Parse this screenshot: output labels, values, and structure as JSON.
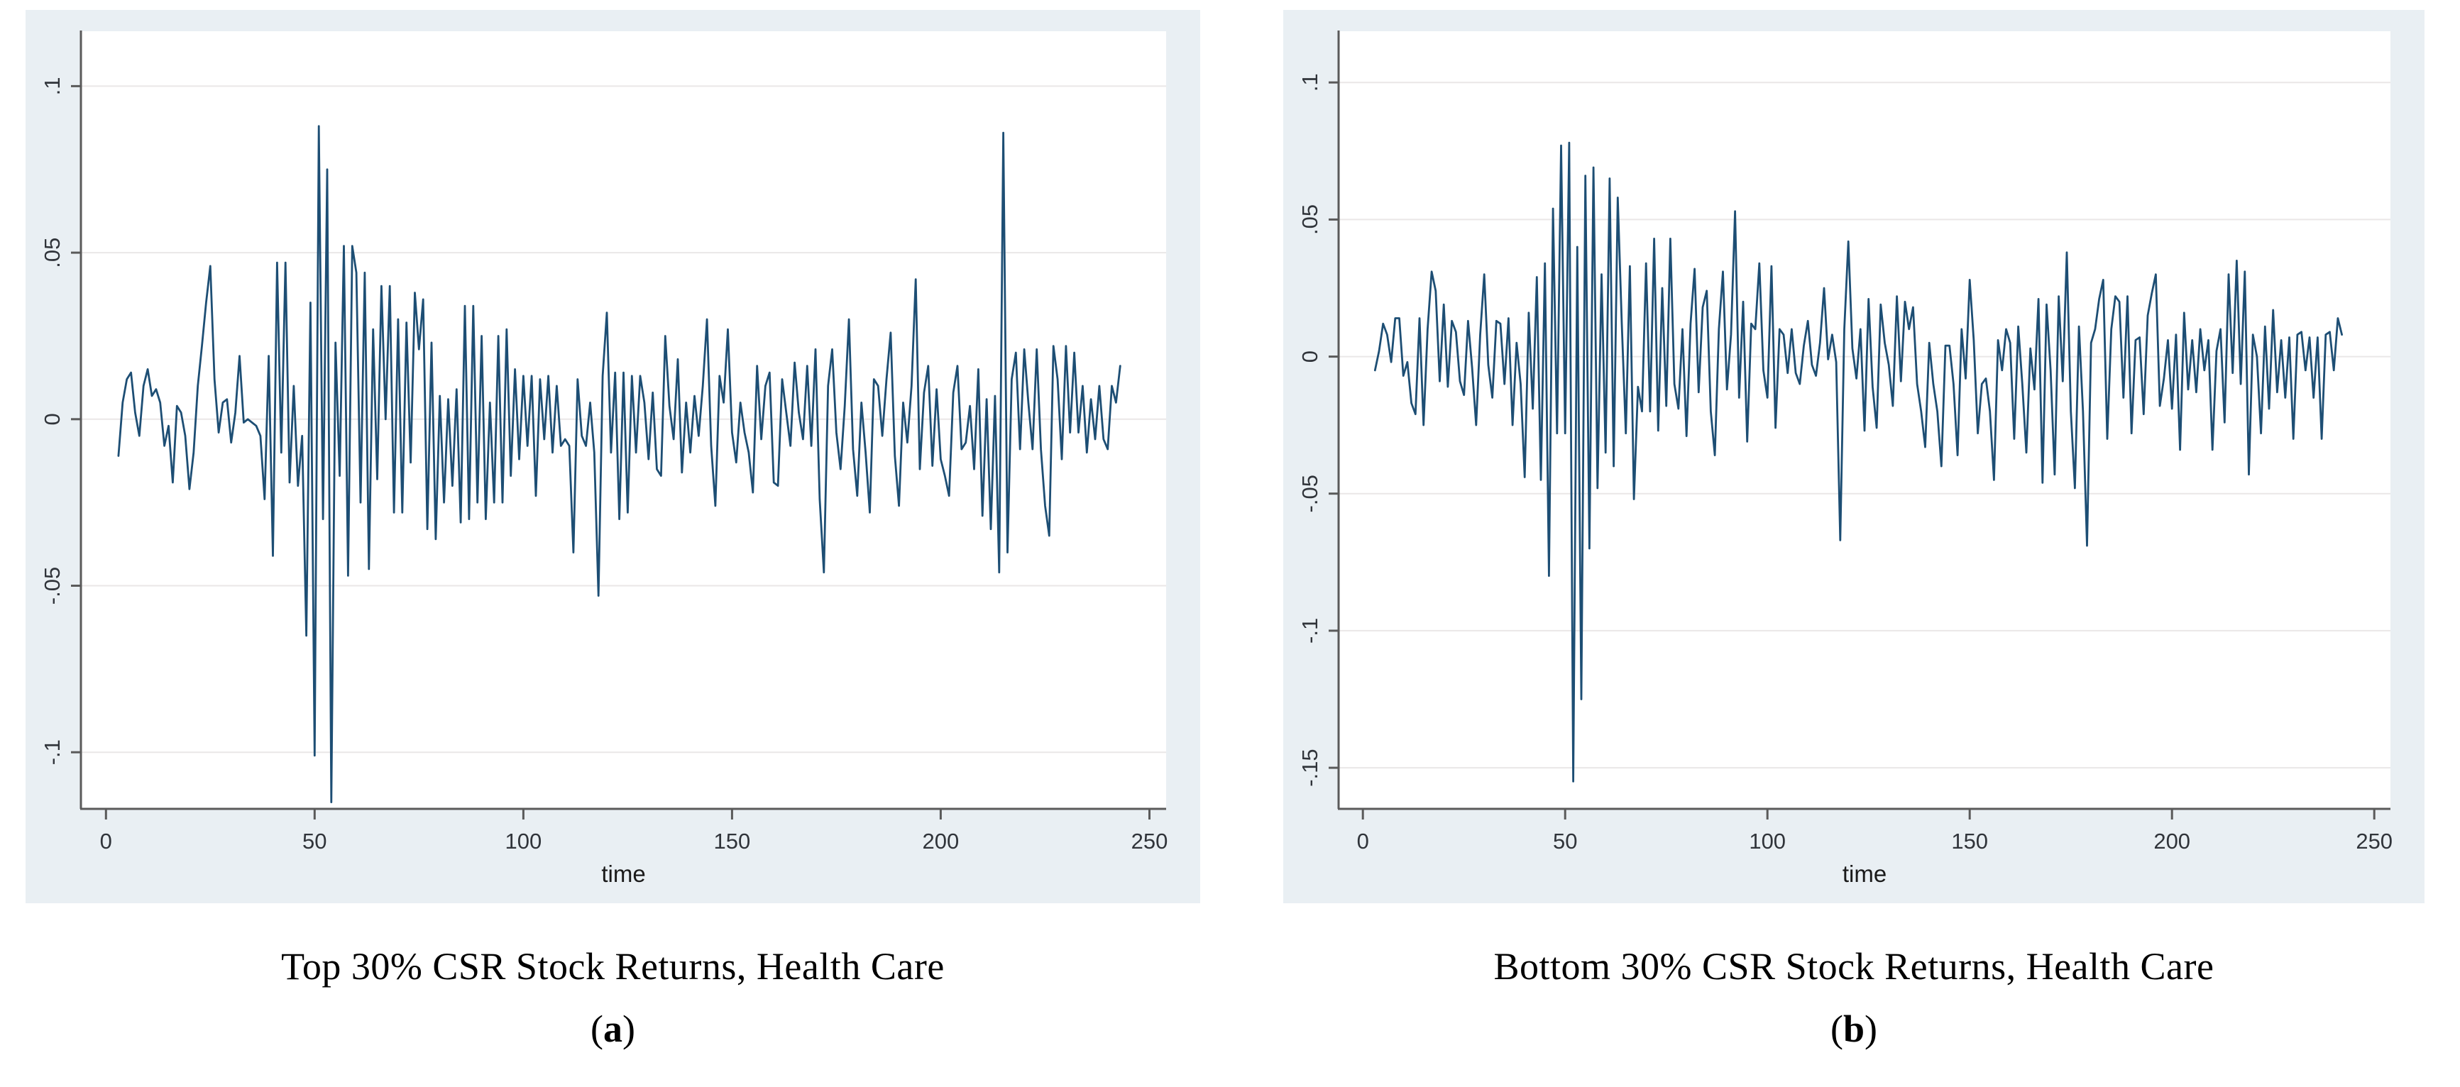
{
  "figure": {
    "panels": [
      {
        "caption": "Top 30% CSR Stock Returns, Health Care",
        "letter_open": "(",
        "letter": "a",
        "letter_close": ")"
      },
      {
        "caption": "Bottom 30% CSR Stock Returns, Health Care",
        "letter_open": "(",
        "letter": "b",
        "letter_close": ")"
      }
    ]
  },
  "chart_data": [
    {
      "type": "line",
      "title": "",
      "xlabel": "time",
      "ylabel": "",
      "x_start": 3,
      "x_step": 1,
      "xlim": [
        -6,
        254
      ],
      "ylim": [
        -0.117,
        0.1165
      ],
      "xticks": [
        0,
        50,
        100,
        150,
        200,
        250
      ],
      "yticks": [
        0.1,
        0.05,
        0,
        -0.05,
        -0.1
      ],
      "ytick_labels": [
        ".1",
        ".05",
        "0",
        "-.05",
        "-.1"
      ],
      "grid": true,
      "legend": "none",
      "line_color": "#1d4e74",
      "background_color": "#e9eff3",
      "plot_background": "#ffffff",
      "grid_color": "#eae7e7",
      "axis_color": "#5a5a5a",
      "tick_label_color": "#30343a",
      "xlabel_color": "#1a1a1a",
      "values": [
        -0.011,
        0.005,
        0.012,
        0.014,
        0.002,
        -0.005,
        0.01,
        0.015,
        0.007,
        0.009,
        0.005,
        -0.008,
        -0.002,
        -0.019,
        0.004,
        0.002,
        -0.005,
        -0.021,
        -0.01,
        0.01,
        0.022,
        0.035,
        0.046,
        0.012,
        -0.004,
        0.005,
        0.006,
        -0.007,
        0.002,
        0.019,
        -0.001,
        0.0,
        -0.001,
        -0.002,
        -0.005,
        -0.024,
        0.019,
        -0.041,
        0.047,
        -0.01,
        0.047,
        -0.019,
        0.01,
        -0.02,
        -0.005,
        -0.065,
        0.035,
        -0.101,
        0.088,
        -0.03,
        0.075,
        -0.115,
        0.023,
        -0.017,
        0.052,
        -0.047,
        0.052,
        0.044,
        -0.025,
        0.044,
        -0.045,
        0.027,
        -0.018,
        0.04,
        0.0,
        0.04,
        -0.028,
        0.03,
        -0.028,
        0.029,
        -0.013,
        0.038,
        0.021,
        0.036,
        -0.033,
        0.023,
        -0.036,
        0.007,
        -0.025,
        0.006,
        -0.02,
        0.009,
        -0.031,
        0.034,
        -0.03,
        0.034,
        -0.025,
        0.025,
        -0.03,
        0.005,
        -0.025,
        0.025,
        -0.025,
        0.027,
        -0.017,
        0.015,
        -0.012,
        0.013,
        -0.008,
        0.013,
        -0.023,
        0.012,
        -0.006,
        0.013,
        -0.01,
        0.01,
        -0.008,
        -0.006,
        -0.008,
        -0.04,
        0.012,
        -0.005,
        -0.008,
        0.005,
        -0.01,
        -0.053,
        0.013,
        0.032,
        -0.01,
        0.014,
        -0.03,
        0.014,
        -0.028,
        0.013,
        -0.01,
        0.013,
        0.005,
        -0.012,
        0.008,
        -0.015,
        -0.017,
        0.025,
        0.004,
        -0.006,
        0.018,
        -0.016,
        0.005,
        -0.01,
        0.007,
        -0.005,
        0.01,
        0.03,
        -0.008,
        -0.026,
        0.013,
        0.005,
        0.027,
        -0.004,
        -0.013,
        0.005,
        -0.004,
        -0.01,
        -0.022,
        0.016,
        -0.006,
        0.01,
        0.014,
        -0.019,
        -0.02,
        0.012,
        0.002,
        -0.008,
        0.017,
        0.002,
        -0.006,
        0.016,
        -0.008,
        0.021,
        -0.024,
        -0.046,
        0.01,
        0.021,
        -0.004,
        -0.015,
        0.004,
        0.03,
        -0.009,
        -0.023,
        0.005,
        -0.01,
        -0.028,
        0.012,
        0.01,
        -0.005,
        0.012,
        0.026,
        -0.011,
        -0.026,
        0.005,
        -0.007,
        0.01,
        0.042,
        -0.015,
        0.008,
        0.016,
        -0.014,
        0.009,
        -0.012,
        -0.017,
        -0.023,
        0.008,
        0.016,
        -0.009,
        -0.007,
        0.004,
        -0.015,
        0.015,
        -0.029,
        0.006,
        -0.033,
        0.007,
        -0.046,
        0.086,
        -0.04,
        0.012,
        0.02,
        -0.009,
        0.021,
        0.005,
        -0.009,
        0.021,
        -0.009,
        -0.026,
        -0.035,
        0.022,
        0.012,
        -0.012,
        0.022,
        -0.004,
        0.02,
        -0.004,
        0.01,
        -0.01,
        0.006,
        -0.006,
        0.01,
        -0.006,
        -0.009,
        0.01,
        0.005,
        0.016
      ]
    },
    {
      "type": "line",
      "title": "",
      "xlabel": "time",
      "ylabel": "",
      "x_start": 3,
      "x_step": 1,
      "xlim": [
        -6,
        254
      ],
      "ylim": [
        -0.165,
        0.1187
      ],
      "xticks": [
        0,
        50,
        100,
        150,
        200,
        250
      ],
      "yticks": [
        0.1,
        0.05,
        0,
        -0.05,
        -0.1,
        -0.15
      ],
      "ytick_labels": [
        ".1",
        ".05",
        "0",
        "-.05",
        "-.1",
        "-.15"
      ],
      "grid": true,
      "legend": "none",
      "line_color": "#1d4e74",
      "background_color": "#e9eff3",
      "plot_background": "#ffffff",
      "grid_color": "#eae7e7",
      "axis_color": "#5a5a5a",
      "tick_label_color": "#30343a",
      "xlabel_color": "#1a1a1a",
      "values": [
        -0.005,
        0.002,
        0.012,
        0.008,
        -0.002,
        0.014,
        0.014,
        -0.007,
        -0.002,
        -0.017,
        -0.021,
        0.014,
        -0.025,
        0.01,
        0.031,
        0.024,
        -0.009,
        0.019,
        -0.011,
        0.013,
        0.009,
        -0.009,
        -0.014,
        0.013,
        -0.004,
        -0.025,
        0.008,
        0.03,
        -0.003,
        -0.015,
        0.013,
        0.012,
        -0.01,
        0.014,
        -0.025,
        0.005,
        -0.01,
        -0.044,
        0.016,
        -0.019,
        0.029,
        -0.045,
        0.034,
        -0.08,
        0.054,
        -0.028,
        0.077,
        -0.028,
        0.078,
        -0.155,
        0.04,
        -0.125,
        0.066,
        -0.07,
        0.069,
        -0.048,
        0.03,
        -0.035,
        0.065,
        -0.04,
        0.058,
        0.012,
        -0.028,
        0.033,
        -0.052,
        -0.011,
        -0.02,
        0.034,
        -0.02,
        0.043,
        -0.027,
        0.025,
        -0.018,
        0.043,
        -0.01,
        -0.019,
        0.01,
        -0.029,
        0.012,
        0.032,
        -0.013,
        0.018,
        0.024,
        -0.02,
        -0.036,
        0.01,
        0.031,
        -0.012,
        0.008,
        0.053,
        -0.015,
        0.02,
        -0.031,
        0.012,
        0.01,
        0.034,
        -0.005,
        -0.015,
        0.033,
        -0.026,
        0.01,
        0.008,
        -0.006,
        0.01,
        -0.006,
        -0.01,
        0.004,
        0.013,
        -0.003,
        -0.007,
        0.005,
        0.025,
        -0.001,
        0.008,
        -0.002,
        -0.067,
        0.01,
        0.042,
        0.003,
        -0.008,
        0.01,
        -0.027,
        0.021,
        -0.011,
        -0.026,
        0.019,
        0.005,
        -0.003,
        -0.018,
        0.022,
        -0.009,
        0.02,
        0.01,
        0.018,
        -0.01,
        -0.02,
        -0.033,
        0.005,
        -0.01,
        -0.02,
        -0.04,
        0.004,
        0.004,
        -0.01,
        -0.036,
        0.01,
        -0.008,
        0.028,
        0.006,
        -0.028,
        -0.01,
        -0.008,
        -0.02,
        -0.045,
        0.006,
        -0.005,
        0.01,
        0.005,
        -0.03,
        0.011,
        -0.01,
        -0.035,
        0.003,
        -0.012,
        0.021,
        -0.046,
        0.019,
        -0.005,
        -0.043,
        0.022,
        -0.009,
        0.038,
        -0.02,
        -0.048,
        0.011,
        -0.02,
        -0.069,
        0.005,
        0.01,
        0.021,
        0.028,
        -0.03,
        0.01,
        0.022,
        0.02,
        -0.015,
        0.022,
        -0.028,
        0.006,
        0.007,
        -0.021,
        0.015,
        0.023,
        0.03,
        -0.018,
        -0.008,
        0.006,
        -0.019,
        0.008,
        -0.034,
        0.016,
        -0.012,
        0.006,
        -0.013,
        0.01,
        -0.005,
        0.006,
        -0.034,
        0.002,
        0.01,
        -0.024,
        0.03,
        -0.006,
        0.035,
        -0.01,
        0.031,
        -0.043,
        0.008,
        0.0,
        -0.028,
        0.011,
        -0.019,
        0.017,
        -0.013,
        0.006,
        -0.015,
        0.007,
        -0.03,
        0.008,
        0.009,
        -0.005,
        0.007,
        -0.015,
        0.007,
        -0.03,
        0.008,
        0.009,
        -0.005,
        0.014,
        0.008
      ]
    }
  ]
}
